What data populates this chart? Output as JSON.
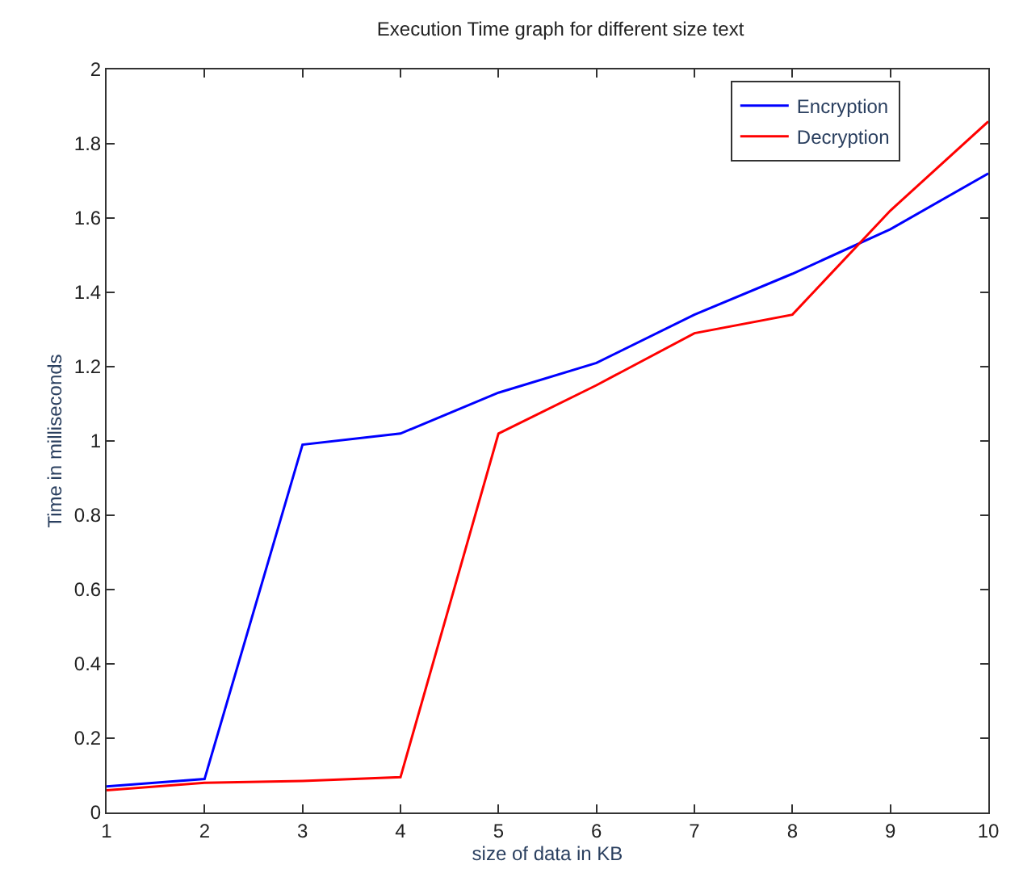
{
  "chart_data": {
    "type": "line",
    "title": "Execution Time graph for different size text",
    "xlabel": "size of data in KB",
    "ylabel": "Time in milliseconds",
    "x": [
      1,
      2,
      3,
      4,
      5,
      6,
      7,
      8,
      9,
      10
    ],
    "series": [
      {
        "name": "Encryption",
        "color": "#0000ff",
        "values": [
          0.07,
          0.09,
          0.99,
          1.02,
          1.13,
          1.21,
          1.34,
          1.45,
          1.57,
          1.72
        ]
      },
      {
        "name": "Decryption",
        "color": "#ff0000",
        "values": [
          0.06,
          0.08,
          0.085,
          0.095,
          1.02,
          1.15,
          1.29,
          1.34,
          1.62,
          1.86
        ]
      }
    ],
    "xlim": [
      1,
      10
    ],
    "xticks": [
      1,
      2,
      3,
      4,
      5,
      6,
      7,
      8,
      9,
      10
    ],
    "ylim": [
      0,
      2
    ],
    "yticks": [
      0,
      0.2,
      0.4,
      0.6,
      0.8,
      1,
      1.2,
      1.4,
      1.6,
      1.8,
      2
    ],
    "legend": "top right",
    "marker": "none",
    "line_style": "solid"
  }
}
